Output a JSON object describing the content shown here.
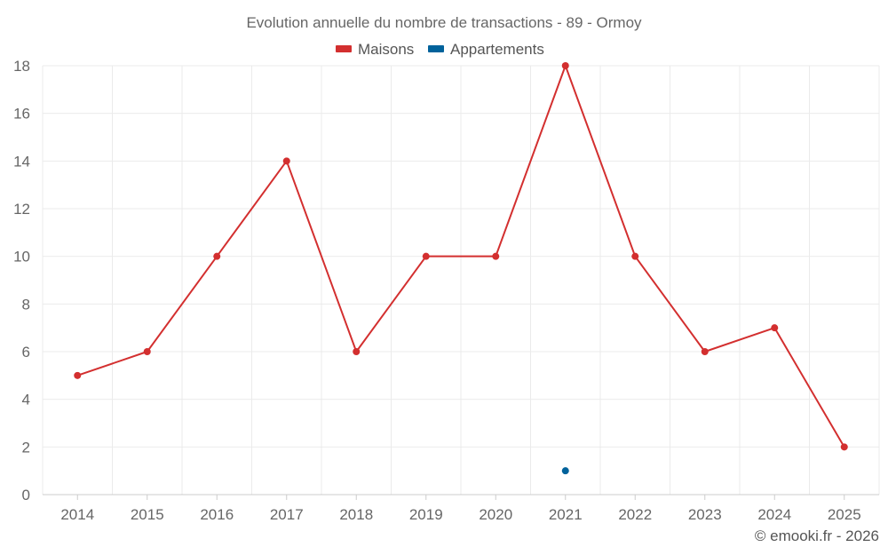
{
  "chart_data": {
    "type": "line",
    "title": "Evolution annuelle du nombre de transactions - 89 - Ormoy",
    "categories": [
      "2014",
      "2015",
      "2016",
      "2017",
      "2018",
      "2019",
      "2020",
      "2021",
      "2022",
      "2023",
      "2024",
      "2025"
    ],
    "series": [
      {
        "name": "Maisons",
        "color": "#d32f2f",
        "values": [
          5,
          6,
          10,
          14,
          6,
          10,
          10,
          18,
          10,
          6,
          7,
          2
        ]
      },
      {
        "name": "Appartements",
        "color": "#00629b",
        "values": [
          null,
          null,
          null,
          null,
          null,
          null,
          null,
          1,
          null,
          null,
          null,
          null
        ]
      }
    ],
    "ylim": [
      0,
      18
    ],
    "yticks": [
      "0",
      "2",
      "4",
      "6",
      "8",
      "10",
      "12",
      "14",
      "16",
      "18"
    ],
    "xlabel": "",
    "ylabel": "",
    "grid": true,
    "legend": "top-center",
    "credit": "© emooki.fr - 2026"
  }
}
